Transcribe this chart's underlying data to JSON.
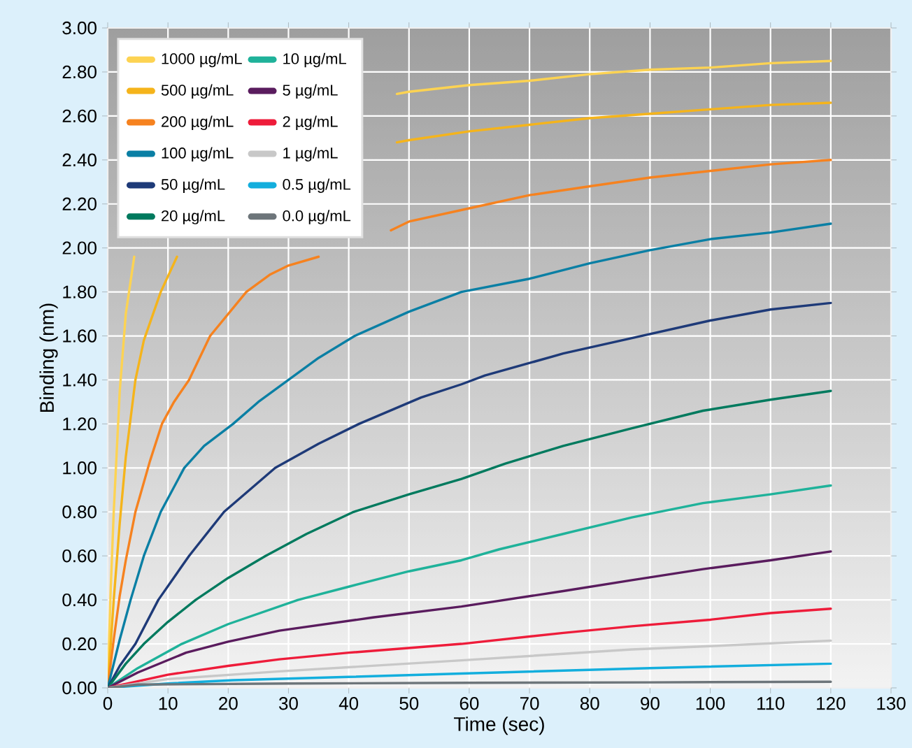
{
  "chart_data": {
    "type": "line",
    "xlabel": "Time (sec)",
    "ylabel": "Binding (nm)",
    "xlim": [
      0,
      130
    ],
    "xticks": [
      0,
      10,
      20,
      30,
      40,
      50,
      60,
      70,
      80,
      90,
      100,
      110,
      120,
      130
    ],
    "ylim": [
      0,
      3
    ],
    "yticks": [
      {
        "value": 0,
        "label": "0.00"
      },
      {
        "value": 0.2,
        "label": "0.20"
      },
      {
        "value": 0.4,
        "label": "0.40"
      },
      {
        "value": 0.6,
        "label": "0.60"
      },
      {
        "value": 0.8,
        "label": "0.80"
      },
      {
        "value": 1.0,
        "label": "1.00"
      },
      {
        "value": 1.2,
        "label": "1.20"
      },
      {
        "value": 1.4,
        "label": "1.40"
      },
      {
        "value": 1.6,
        "label": "1.60"
      },
      {
        "value": 1.8,
        "label": "1.80"
      },
      {
        "value": 2.0,
        "label": "2.00"
      },
      {
        "value": 2.2,
        "label": "2.20"
      },
      {
        "value": 2.4,
        "label": "2.40"
      },
      {
        "value": 2.6,
        "label": "2.60"
      },
      {
        "value": 2.8,
        "label": "2.80"
      },
      {
        "value": 3.0,
        "label": "3.00"
      }
    ],
    "grid": true,
    "legend": "top left",
    "series": [
      {
        "name": "1000 µg/mL",
        "color": "#fdd352",
        "x": [
          0,
          0.5,
          1,
          2,
          3,
          4.4,
          25,
          48,
          50,
          60,
          70,
          80,
          90,
          100,
          110,
          120
        ],
        "values": [
          0,
          0.45,
          0.8,
          1.35,
          1.7,
          1.96,
          null,
          2.7,
          2.71,
          2.74,
          2.76,
          2.79,
          2.81,
          2.82,
          2.84,
          2.85
        ]
      },
      {
        "name": "500 µg/mL",
        "color": "#f5b41b",
        "x": [
          0,
          1,
          2,
          3,
          4.6,
          6,
          8.8,
          11.5,
          25,
          48,
          50,
          60,
          70,
          80,
          90,
          100,
          110,
          120
        ],
        "values": [
          0,
          0.4,
          0.75,
          1.05,
          1.4,
          1.58,
          1.8,
          1.96,
          null,
          2.48,
          2.49,
          2.53,
          2.56,
          2.59,
          2.61,
          2.63,
          2.65,
          2.66
        ]
      },
      {
        "name": "200 µg/mL",
        "color": "#f6821f",
        "x": [
          0,
          1,
          2,
          3,
          4.6,
          7,
          9,
          11,
          13.5,
          17,
          20,
          23,
          27,
          30,
          35,
          40,
          47,
          50,
          60,
          70,
          80,
          90,
          100,
          110,
          120
        ],
        "values": [
          0,
          0.22,
          0.42,
          0.58,
          0.8,
          1.03,
          1.2,
          1.3,
          1.4,
          1.6,
          1.7,
          1.8,
          1.88,
          1.92,
          1.96,
          null,
          2.08,
          2.12,
          2.18,
          2.24,
          2.28,
          2.32,
          2.35,
          2.38,
          2.4
        ]
      },
      {
        "name": "100 µg/mL",
        "color": "#0a7fa4",
        "x": [
          0,
          2,
          3.8,
          6,
          8.8,
          12.7,
          16,
          20.8,
          25,
          30,
          35,
          41,
          50,
          58.7,
          70,
          80,
          90,
          100,
          110,
          120
        ],
        "values": [
          0,
          0.22,
          0.4,
          0.6,
          0.8,
          1.0,
          1.1,
          1.2,
          1.3,
          1.4,
          1.5,
          1.6,
          1.71,
          1.8,
          1.86,
          1.93,
          1.99,
          2.04,
          2.07,
          2.11
        ]
      },
      {
        "name": "50 µg/mL",
        "color": "#1e3a78",
        "x": [
          0,
          2,
          4.6,
          8.4,
          13.5,
          19.3,
          27.8,
          35,
          41.7,
          52,
          58.7,
          62.6,
          75.6,
          87,
          100,
          110,
          120
        ],
        "values": [
          0,
          0.1,
          0.2,
          0.4,
          0.6,
          0.8,
          1.0,
          1.11,
          1.2,
          1.32,
          1.38,
          1.42,
          1.52,
          1.59,
          1.67,
          1.72,
          1.75
        ]
      },
      {
        "name": "20 µg/mL",
        "color": "#007a5e",
        "x": [
          0,
          3,
          6,
          10,
          14.6,
          20,
          26.2,
          33,
          40.8,
          50,
          58.7,
          66,
          75.6,
          87,
          98.8,
          110,
          120
        ],
        "values": [
          0,
          0.11,
          0.2,
          0.3,
          0.4,
          0.5,
          0.6,
          0.7,
          0.8,
          0.88,
          0.95,
          1.02,
          1.1,
          1.18,
          1.26,
          1.31,
          1.35
        ]
      },
      {
        "name": "10 µg/mL",
        "color": "#1fb29a",
        "x": [
          0,
          5,
          12.3,
          20,
          31.6,
          40,
          50,
          58.7,
          65,
          75.6,
          87,
          98.8,
          110,
          120
        ],
        "values": [
          0,
          0.09,
          0.2,
          0.29,
          0.4,
          0.46,
          0.53,
          0.58,
          0.63,
          0.7,
          0.775,
          0.84,
          0.88,
          0.92
        ]
      },
      {
        "name": "5 µg/mL",
        "color": "#5a1c5e",
        "x": [
          0,
          5,
          13,
          20,
          28.5,
          44,
          58.7,
          75.6,
          87,
          98.8,
          110,
          120
        ],
        "values": [
          0,
          0.07,
          0.16,
          0.21,
          0.26,
          0.32,
          0.37,
          0.44,
          0.49,
          0.54,
          0.58,
          0.62
        ]
      },
      {
        "name": "2 µg/mL",
        "color": "#ee1c3a",
        "x": [
          0,
          10,
          20,
          28.5,
          40,
          58.7,
          75.6,
          87,
          100,
          110,
          120
        ],
        "values": [
          0,
          0.06,
          0.1,
          0.13,
          0.16,
          0.2,
          0.25,
          0.28,
          0.31,
          0.34,
          0.36
        ]
      },
      {
        "name": "1 µg/mL",
        "color": "#c8c8c8",
        "x": [
          0,
          10,
          28.5,
          58.7,
          87,
          100,
          120
        ],
        "values": [
          0,
          0.04,
          0.075,
          0.125,
          0.175,
          0.19,
          0.215
        ]
      },
      {
        "name": "0.5 µg/mL",
        "color": "#13aedd",
        "x": [
          0,
          10,
          20.8,
          40,
          58.7,
          90,
          120
        ],
        "values": [
          0,
          0.02,
          0.035,
          0.05,
          0.065,
          0.09,
          0.11
        ]
      },
      {
        "name": "0.0 µg/mL",
        "color": "#6d757a",
        "x": [
          0,
          5,
          30,
          60,
          90,
          120
        ],
        "values": [
          0,
          0.015,
          0.02,
          0.023,
          0.025,
          0.028
        ]
      }
    ]
  }
}
